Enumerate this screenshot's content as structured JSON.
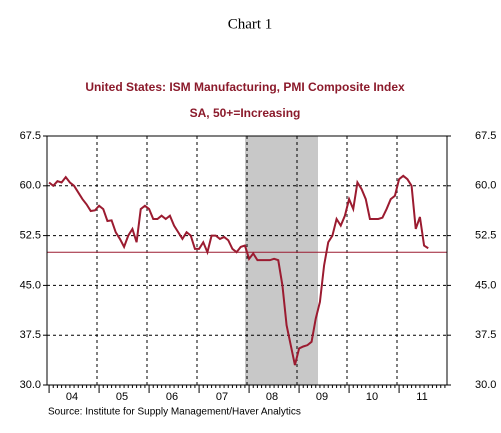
{
  "chart_data": {
    "type": "line",
    "title": "Chart 1",
    "subtitle": "United States: ISM Manufacturing, PMI Composite Index",
    "subtitle2": "SA, 50+=Increasing",
    "source": "Source:  Institute for Supply Management/Haver Analytics",
    "categories": [
      null,
      null,
      null,
      null,
      null,
      null,
      "04",
      null,
      null,
      null,
      null,
      null,
      null,
      null,
      null,
      null,
      null,
      null,
      "05",
      null,
      null,
      null,
      null,
      null,
      null,
      null,
      null,
      null,
      null,
      null,
      "06",
      null,
      null,
      null,
      null,
      null,
      null,
      null,
      null,
      null,
      null,
      null,
      "07",
      null,
      null,
      null,
      null,
      null,
      null,
      null,
      null,
      null,
      null,
      null,
      "08",
      null,
      null,
      null,
      null,
      null,
      null,
      null,
      null,
      null,
      null,
      null,
      "09",
      null,
      null,
      null,
      null,
      null,
      null,
      null,
      null,
      null,
      null,
      null,
      "10",
      null,
      null,
      null,
      null,
      null,
      null,
      null,
      null,
      null,
      null,
      null,
      "11",
      null,
      null,
      null,
      null,
      null
    ],
    "series": [
      {
        "name": "ISM Manufacturing PMI",
        "color": "#9b1b30",
        "values": [
          60.5,
          60.0,
          60.7,
          60.5,
          61.3,
          60.5,
          60.0,
          59.0,
          58.0,
          57.2,
          56.2,
          56.3,
          57.0,
          56.5,
          54.7,
          54.8,
          53.0,
          52.0,
          50.8,
          52.5,
          53.5,
          51.5,
          56.5,
          57.0,
          56.5,
          55.0,
          55.0,
          55.5,
          55.0,
          55.5,
          54.0,
          53.0,
          52.0,
          53.0,
          52.5,
          50.5,
          50.5,
          51.5,
          50.0,
          52.5,
          52.5,
          52.0,
          52.3,
          51.8,
          50.5,
          50.0,
          50.8,
          51.0,
          49.0,
          49.8,
          48.8,
          48.8,
          48.8,
          48.8,
          49.0,
          48.8,
          45.0,
          39.0,
          36.0,
          33.0,
          35.5,
          35.8,
          36.0,
          36.5,
          40.0,
          42.5,
          48.0,
          51.5,
          52.5,
          55.0,
          54.0,
          55.5,
          58.0,
          56.5,
          60.5,
          59.5,
          58.0,
          55.0,
          55.0,
          55.0,
          55.2,
          56.5,
          58.0,
          58.5,
          61.0,
          61.5,
          61.0,
          60.0,
          53.5,
          55.3,
          51.0,
          50.6,
          null,
          null,
          null,
          null
        ]
      }
    ],
    "reference_line": 50,
    "ylim": [
      30,
      67.5
    ],
    "yticks": [
      {
        "value": 30,
        "label": "30.0"
      },
      37.5,
      {
        "value": 45,
        "label": "45.0"
      },
      52.5,
      {
        "value": 60,
        "label": "60.0"
      },
      67.5
    ],
    "grid": true
  }
}
